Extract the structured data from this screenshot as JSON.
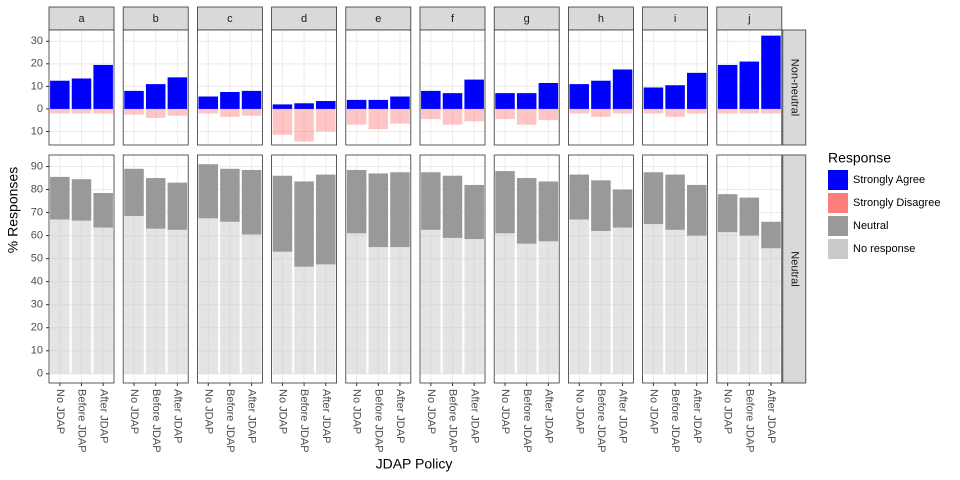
{
  "chart_data": {
    "type": "faceted_stacked_bar",
    "x_label": "JDAP Policy",
    "y_label": "% Responses",
    "legend_title": "Response",
    "grid": true,
    "categories": [
      "No JDAP",
      "Before JDAP",
      "After JDAP"
    ],
    "facets": [
      "a",
      "b",
      "c",
      "d",
      "e",
      "f",
      "g",
      "h",
      "i",
      "j"
    ],
    "rows": [
      {
        "name": "Non-neutral",
        "ylim": [
          -16,
          35
        ],
        "yticks": [
          {
            "value": -10,
            "label": "10"
          },
          0,
          10,
          20,
          30
        ]
      },
      {
        "name": "Neutral",
        "ylim": [
          -4,
          95
        ],
        "yticks": [
          0,
          10,
          20,
          30,
          40,
          50,
          60,
          70,
          80,
          90
        ]
      }
    ],
    "series": [
      {
        "name": "Strongly Agree",
        "color": "#0000ff",
        "opacity": 1,
        "row": 0,
        "values": [
          [
            12.5,
            13.5,
            19.5
          ],
          [
            8,
            11,
            14
          ],
          [
            5.5,
            7.5,
            8
          ],
          [
            2,
            2.5,
            3.5
          ],
          [
            4,
            4,
            5.5
          ],
          [
            8,
            7,
            13
          ],
          [
            7,
            7,
            11.5
          ],
          [
            11,
            12.5,
            17.5
          ],
          [
            9.5,
            10.5,
            16
          ],
          [
            19.5,
            21,
            32.5
          ]
        ]
      },
      {
        "name": "Strongly Disagree",
        "color": "#ff6f6f",
        "opacity": 0.4,
        "row": 0,
        "values": [
          [
            -2,
            -2,
            -2
          ],
          [
            -2.5,
            -4,
            -3
          ],
          [
            -2,
            -3.5,
            -3
          ],
          [
            -11.5,
            -14.5,
            -10
          ],
          [
            -7,
            -9,
            -6.5
          ],
          [
            -4.5,
            -7,
            -5.5
          ],
          [
            -4.5,
            -7,
            -5
          ],
          [
            -2,
            -3.5,
            -2
          ],
          [
            -2,
            -3.5,
            -2
          ],
          [
            -2,
            -2,
            -2
          ]
        ]
      },
      {
        "name": "Neutral",
        "color": "#999999",
        "opacity": 1,
        "row": 1,
        "stack": 1,
        "values": [
          [
            18.5,
            18,
            15
          ],
          [
            20.5,
            22,
            20.5
          ],
          [
            23.5,
            23,
            28
          ],
          [
            33,
            37,
            39
          ],
          [
            27.5,
            32,
            32.5
          ],
          [
            25,
            27,
            23.5
          ],
          [
            27,
            28.5,
            26
          ],
          [
            19.5,
            22,
            16.5
          ],
          [
            22.5,
            24,
            22
          ],
          [
            16.5,
            16.5,
            11.5
          ]
        ]
      },
      {
        "name": "No response",
        "color": "#c4c4c4",
        "opacity": 0.45,
        "row": 1,
        "stack": 0,
        "values": [
          [
            67,
            66.5,
            63.5
          ],
          [
            68.5,
            63,
            62.5
          ],
          [
            67.5,
            66,
            60.5
          ],
          [
            53,
            46.5,
            47.5
          ],
          [
            61,
            55,
            55
          ],
          [
            62.5,
            59,
            58.5
          ],
          [
            61,
            56.5,
            57.5
          ],
          [
            67,
            62,
            63.5
          ],
          [
            65,
            62.5,
            60
          ],
          [
            61.5,
            60,
            54.5
          ]
        ]
      }
    ]
  }
}
